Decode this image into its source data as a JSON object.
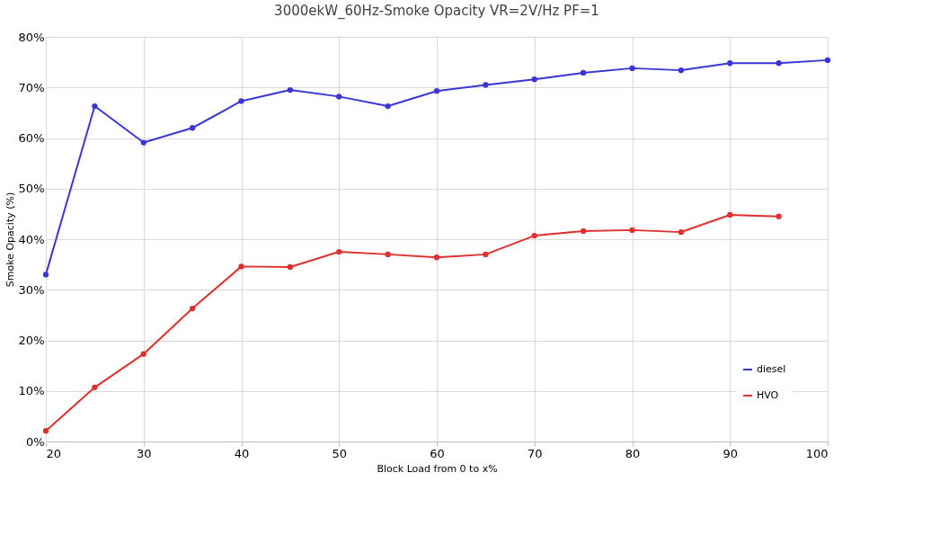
{
  "chart_data": {
    "type": "line",
    "title": "3000ekW_60Hz-Smoke Opacity VR=2V/Hz PF=1",
    "xlabel": "Block Load from 0 to x%",
    "ylabel": "Smoke Opacity (%)",
    "x": [
      20,
      25,
      30,
      35,
      40,
      45,
      50,
      55,
      60,
      65,
      70,
      75,
      80,
      85,
      90,
      95,
      100
    ],
    "series": [
      {
        "name": "diesel",
        "color": "#3a36d6",
        "values": [
          33.0,
          66.3,
          59.1,
          62.0,
          67.3,
          69.5,
          68.2,
          66.3,
          69.3,
          70.5,
          71.6,
          72.9,
          73.8,
          73.4,
          74.8,
          74.8,
          75.4
        ]
      },
      {
        "name": "HVO",
        "color": "#e0302e",
        "values": [
          2.1,
          10.7,
          17.3,
          26.3,
          34.6,
          34.5,
          37.5,
          37.0,
          36.4,
          37.0,
          40.7,
          41.6,
          41.8,
          41.4,
          44.8,
          44.5,
          null
        ]
      }
    ],
    "xlim": [
      20,
      100
    ],
    "xticks": [
      20,
      30,
      40,
      50,
      60,
      70,
      80,
      90,
      100
    ],
    "ylim": [
      0,
      80
    ],
    "yticks": [
      {
        "value": 0,
        "label": "0%"
      },
      {
        "value": 10,
        "label": "10%"
      },
      {
        "value": 20,
        "label": "20%"
      },
      {
        "value": 30,
        "label": "30%"
      },
      {
        "value": 40,
        "label": "40%"
      },
      {
        "value": 50,
        "label": "50%"
      },
      {
        "value": 60,
        "label": "60%"
      },
      {
        "value": 70,
        "label": "70%"
      },
      {
        "value": 80,
        "label": "80%"
      }
    ],
    "grid": true,
    "legend": "bottom right",
    "marker": "circle",
    "line_style": "solid"
  }
}
